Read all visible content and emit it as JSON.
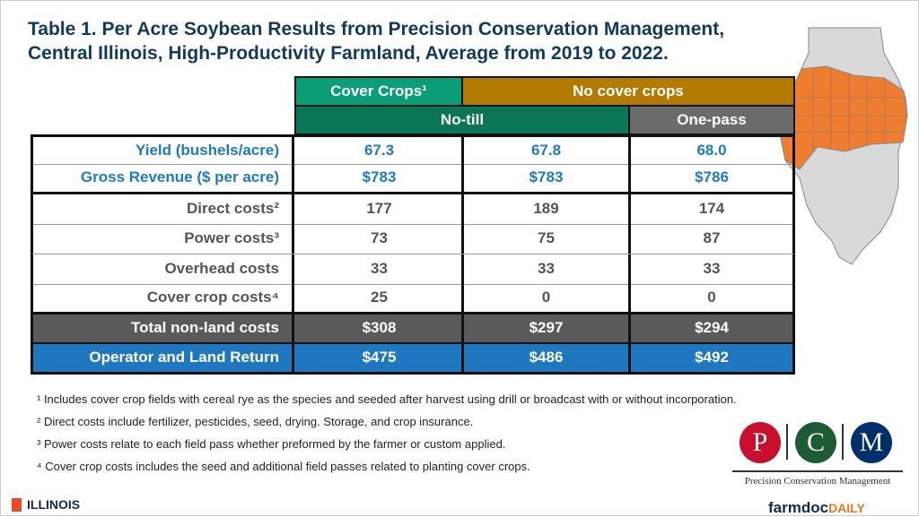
{
  "title_line1": "Table 1. Per Acre Soybean Results from Precision Conservation Management,",
  "title_line2": "Central Illinois, High-Productivity Farmland, Average from 2019 to 2022.",
  "headers": {
    "cover_crops": "Cover Crops¹",
    "no_cover_crops": "No cover crops",
    "no_till": "No-till",
    "one_pass": "One-pass"
  },
  "colors": {
    "cover_crops": "#0b9e76",
    "no_cover": "#b37a00",
    "no_till": "#0b7656",
    "one_pass": "#6b6b6b",
    "total": "#5a5a5a",
    "operator": "#1f77bf"
  },
  "rows": [
    {
      "label": "Yield (bushels/acre)",
      "values": [
        "67.3",
        "67.8",
        "68.0"
      ]
    },
    {
      "label": "Gross Revenue ($ per acre)",
      "values": [
        "$783",
        "$783",
        "$786"
      ]
    },
    {
      "label": "Direct costs²",
      "values": [
        "177",
        "189",
        "174"
      ]
    },
    {
      "label": "Power costs³",
      "values": [
        "73",
        "75",
        "87"
      ]
    },
    {
      "label": "Overhead costs",
      "values": [
        "33",
        "33",
        "33"
      ]
    },
    {
      "label": "Cover crop costs⁴",
      "values": [
        "25",
        "0",
        "0"
      ]
    },
    {
      "label": "Total non-land costs",
      "values": [
        "$308",
        "$297",
        "$294"
      ]
    },
    {
      "label": "Operator and Land Return",
      "values": [
        "$475",
        "$486",
        "$492"
      ]
    }
  ],
  "notes": [
    "¹ Includes cover crop fields with cereal rye as the species and seeded after harvest using drill or broadcast with or without incorporation.",
    "² Direct costs include fertilizer, pesticides, seed, drying. Storage, and crop insurance.",
    "³ Power costs relate to each field pass whether preformed by the farmer or custom applied.",
    "⁴ Cover crop costs includes the seed and additional field passes related to planting cover crops."
  ],
  "logos": {
    "illinois": "ILLINOIS",
    "pcm_letters": [
      "P",
      "C",
      "M"
    ],
    "pcm_name": "Precision Conservation Management",
    "farmdoc": "farmdoc",
    "daily": "DAILY"
  }
}
